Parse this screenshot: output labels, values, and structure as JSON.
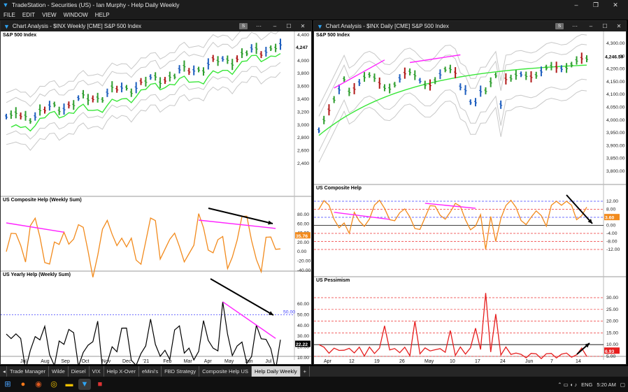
{
  "app": {
    "title": "TradeStation  -  Securities (US)  -  Ian Murphy  -  Help Daily Weekly",
    "menu": [
      "FILE",
      "EDIT",
      "VIEW",
      "WINDOW",
      "HELP"
    ]
  },
  "charts": [
    {
      "window_title": "Chart Analysis - $INX Weekly [CME] S&P 500 Index",
      "btn_s": "S",
      "panels": [
        {
          "label": "S&P 500 Index",
          "ticks": [
            "4,400",
            "4,200",
            "4,000",
            "3,800",
            "3,600",
            "3,400",
            "3,200",
            "3,000",
            "2,800",
            "2,600",
            "2,400"
          ],
          "last_value": "4,247"
        },
        {
          "label": "US Composite Help (Weekly Sum)",
          "ticks": [
            "80.00",
            "60.00",
            "40.00",
            "20.00",
            "0.00",
            "-20.00",
            "-40.00"
          ],
          "last_value": "35.76"
        },
        {
          "label": "US Yearly Help (Weekly Sum)",
          "ticks": [
            "60.00",
            "50.00",
            "40.00",
            "30.00",
            "20.00",
            "10.00",
            "0.00"
          ],
          "last_value": "22.22",
          "ref_label": "50.00"
        }
      ],
      "x_labels": [
        "Jul",
        "Aug",
        "Sep",
        "Oct",
        "Nov",
        "Dec",
        "'21",
        "Feb",
        "Mar",
        "Apr",
        "May",
        "Jun",
        "Jul"
      ]
    },
    {
      "window_title": "Chart Analysis - $INX Daily [CME] S&P 500 Index",
      "btn_s": "S",
      "panels": [
        {
          "label": "S&P 500 Index",
          "ticks": [
            "4,300.00",
            "4,250.00",
            "4,200.00",
            "4,150.00",
            "4,100.00",
            "4,050.00",
            "4,000.00",
            "3,950.00",
            "3,900.00",
            "3,850.00",
            "3,800.00"
          ],
          "last_value": "4,246.59"
        },
        {
          "label": "US Composite Help",
          "ticks": [
            "12.00",
            "8.00",
            "4.00",
            "0.00",
            "-4.00",
            "-8.00",
            "-12.00"
          ],
          "last_value": "3.60"
        },
        {
          "label": "US Pessimism",
          "ticks": [
            "30.00",
            "25.00",
            "20.00",
            "15.00",
            "10.00",
            "5.00"
          ],
          "last_value": "6.93"
        }
      ],
      "x_labels": [
        "Apr",
        "12",
        "19",
        "26",
        "May",
        "10",
        "17",
        "24",
        "Jun",
        "7",
        "14"
      ]
    }
  ],
  "tabs": [
    "Trade Manager",
    "Wilde",
    "Diesel",
    "VIX",
    "Help X-Over",
    "eMini's",
    "FBD Strategy",
    "Composite Help US",
    "Help Daily Weekly",
    "+"
  ],
  "active_tab": "Help Daily Weekly",
  "taskbar": {
    "lang": "ENG",
    "time": "5:20 AM"
  },
  "colors": {
    "up_bar": "#2f9e2f",
    "down_bar": "#b11a1a",
    "blue_bar": "#1f5fbf",
    "ma": "#39e639",
    "band": "#c8c8c8",
    "composite": "#f28a1c",
    "divergence": "#ff22ff",
    "pessimism": "#e61e1e",
    "yearly": "#000000",
    "ref_line": "#4040ff"
  }
}
